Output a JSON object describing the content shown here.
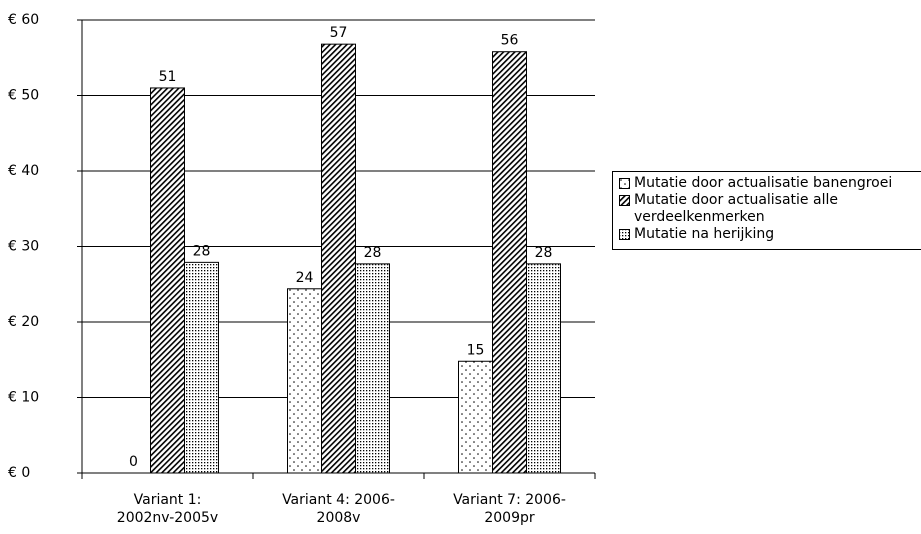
{
  "chart_data": {
    "type": "bar",
    "categories": [
      [
        "Variant 1:",
        "2002nv-2005v"
      ],
      [
        "Variant 4: 2006-",
        "2008v"
      ],
      [
        "Variant 7: 2006-",
        "2009pr"
      ]
    ],
    "series": [
      {
        "name": "Mutatie door actualisatie banengroei",
        "pattern": "dots",
        "values": [
          0,
          24.4,
          14.8
        ],
        "value_labels": [
          "0",
          "24",
          "15"
        ]
      },
      {
        "name": "Mutatie door actualisatie alle verdeelkenmerken",
        "pattern": "hatch",
        "values": [
          51.0,
          56.8,
          55.8
        ],
        "value_labels": [
          "51",
          "57",
          "56"
        ]
      },
      {
        "name": "Mutatie na herijking",
        "pattern": "dense",
        "values": [
          27.9,
          27.7,
          27.7
        ],
        "value_labels": [
          "28",
          "28",
          "28"
        ]
      }
    ],
    "ylim": [
      0,
      60
    ],
    "yticks": [
      {
        "value": 0,
        "label": "€ 0"
      },
      {
        "value": 10,
        "label": "€ 10"
      },
      {
        "value": 20,
        "label": "€ 20"
      },
      {
        "value": 30,
        "label": "€ 30"
      },
      {
        "value": 40,
        "label": "€ 40"
      },
      {
        "value": 50,
        "label": "€ 50"
      },
      {
        "value": 60,
        "label": "€ 60"
      }
    ],
    "grid": true,
    "legend": "right"
  }
}
